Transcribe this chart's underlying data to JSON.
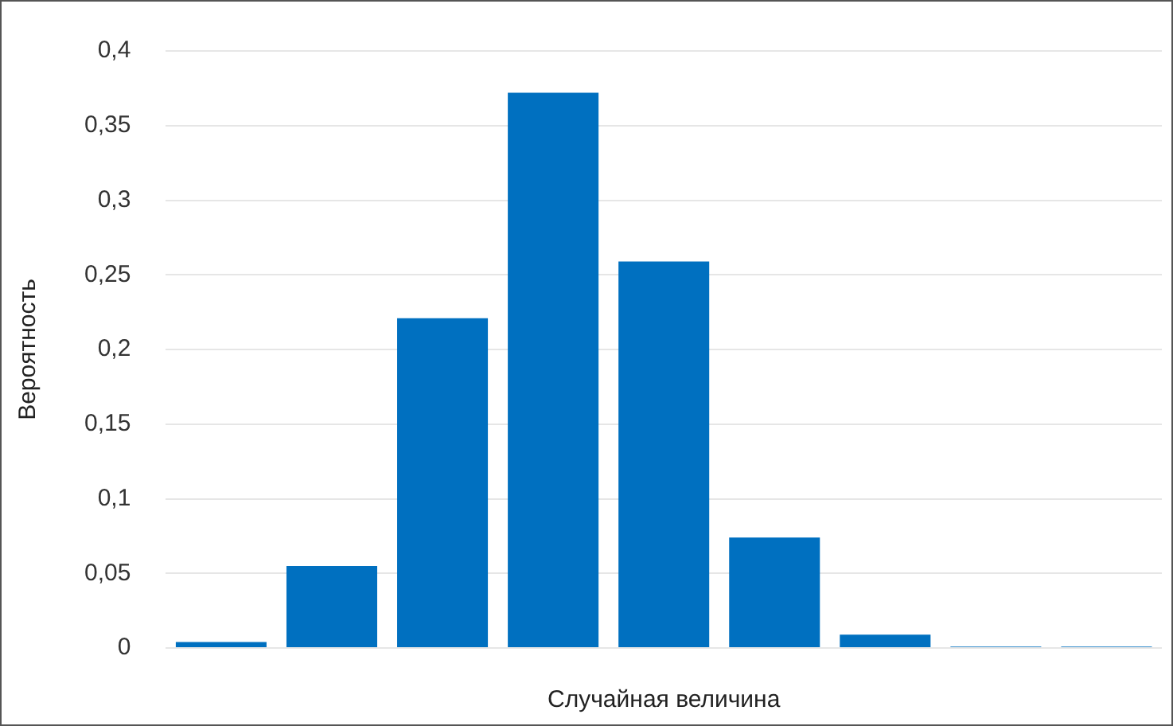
{
  "chart_data": {
    "type": "bar",
    "xlabel": "Случайная величина",
    "ylabel": "Вероятность",
    "categories": [
      null,
      null,
      null,
      null,
      null,
      null,
      null,
      null,
      null
    ],
    "values": [
      0.004,
      0.055,
      0.221,
      0.372,
      0.259,
      0.074,
      0.009,
      0.001,
      0.001
    ],
    "color": "#0070c0",
    "ylim": [
      0,
      0.4
    ],
    "yticks": [
      {
        "value": 0,
        "label": "0"
      },
      {
        "value": 0.05,
        "label": "0,05"
      },
      {
        "value": 0.1,
        "label": "0,1"
      },
      {
        "value": 0.15,
        "label": "0,15"
      },
      {
        "value": 0.2,
        "label": "0,2"
      },
      {
        "value": 0.25,
        "label": "0,25"
      },
      {
        "value": 0.3,
        "label": "0,3"
      },
      {
        "value": 0.35,
        "label": "0,35"
      },
      {
        "value": 0.4,
        "label": "0,4"
      }
    ],
    "grid": "y"
  }
}
